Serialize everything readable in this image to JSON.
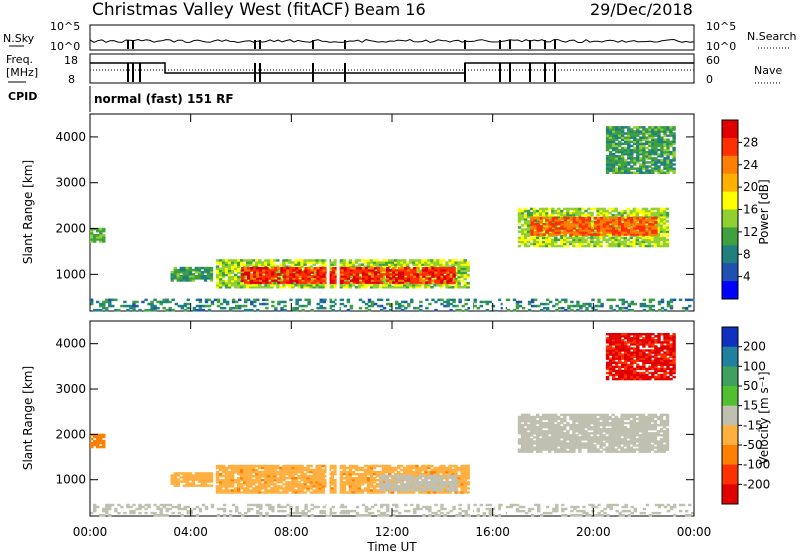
{
  "header": {
    "site": "Christmas Valley West (fitACF)",
    "beam": "Beam 16",
    "date": "29/Dec/2018"
  },
  "top_panels": {
    "nsky_label": "N.Sky",
    "nsky_ticks": [
      "10^5",
      "10^0"
    ],
    "nsearch_label": "N.Search",
    "nsearch_ticks": [
      "10^5",
      "10^0"
    ],
    "freq_label_1": "Freq.",
    "freq_label_2": "[MHz]",
    "freq_ticks": [
      "18",
      "8"
    ],
    "nave_label": "Nave",
    "nave_ticks": [
      "60",
      "0"
    ],
    "cpid_label": "CPID",
    "cpid_value": "normal (fast) 151 RF"
  },
  "colorbars": {
    "power": {
      "label": "Power [dB]",
      "ticks": [
        "28",
        "24",
        "20",
        "16",
        "12",
        "8",
        "4"
      ],
      "colors": [
        "#e00000",
        "#ff3000",
        "#ff7f00",
        "#ffb000",
        "#ffff00",
        "#90d030",
        "#40a040",
        "#208080",
        "#2050b0",
        "#0000ff"
      ]
    },
    "velocity": {
      "label": "Velocity [m s⁻¹]",
      "ticks": [
        "200",
        "100",
        "50",
        "15",
        "-15",
        "-50",
        "-100",
        "-200"
      ],
      "colors": [
        "#1030c0",
        "#2080a0",
        "#40a060",
        "#50c030",
        "#c0c0b0",
        "#ffb040",
        "#ff8000",
        "#ff3000",
        "#e00000"
      ]
    }
  },
  "x_axis": {
    "ticks": [
      "00:00",
      "04:00",
      "08:00",
      "12:00",
      "16:00",
      "20:00",
      "00:00"
    ],
    "label": "Time UT"
  },
  "chart_data": [
    {
      "type": "heatmap",
      "name": "power",
      "xlabel": "Time UT",
      "ylabel": "Slant Range [km]",
      "xlim": [
        0,
        24
      ],
      "ylim": [
        200,
        4500
      ],
      "yticks": [
        1000,
        2000,
        3000,
        4000
      ],
      "colorbar_label": "Power [dB]",
      "colorbar_range": [
        0,
        30
      ],
      "regions": [
        {
          "t0": 0.0,
          "t1": 0.6,
          "r0": 1700,
          "r1": 2000,
          "value": 12
        },
        {
          "t0": 3.2,
          "t1": 4.8,
          "r0": 850,
          "r1": 1150,
          "value": 10
        },
        {
          "t0": 5.0,
          "t1": 15.0,
          "r0": 700,
          "r1": 1300,
          "value": 14
        },
        {
          "t0": 6.0,
          "t1": 14.5,
          "r0": 800,
          "r1": 1150,
          "value": 26
        },
        {
          "t0": 17.0,
          "t1": 23.0,
          "r0": 1600,
          "r1": 2450,
          "value": 14
        },
        {
          "t0": 17.5,
          "t1": 22.5,
          "r0": 1850,
          "r1": 2250,
          "value": 24
        },
        {
          "t0": 20.5,
          "t1": 23.2,
          "r0": 3200,
          "r1": 4200,
          "value": 10
        },
        {
          "t0": 0.0,
          "t1": 24.0,
          "r0": 200,
          "r1": 450,
          "value": 8
        }
      ]
    },
    {
      "type": "heatmap",
      "name": "velocity",
      "xlabel": "Time UT",
      "ylabel": "Slant Range [km]",
      "xlim": [
        0,
        24
      ],
      "ylim": [
        200,
        4500
      ],
      "yticks": [
        1000,
        2000,
        3000,
        4000
      ],
      "colorbar_label": "Velocity [m s⁻¹]",
      "colorbar_range": [
        -250,
        250
      ],
      "regions": [
        {
          "t0": 0.0,
          "t1": 0.6,
          "r0": 1700,
          "r1": 2000,
          "value": -120
        },
        {
          "t0": 3.2,
          "t1": 4.8,
          "r0": 850,
          "r1": 1150,
          "value": -60
        },
        {
          "t0": 5.0,
          "t1": 15.0,
          "r0": 700,
          "r1": 1300,
          "value": -70
        },
        {
          "t0": 11.5,
          "t1": 14.5,
          "r0": 750,
          "r1": 1100,
          "value": 0
        },
        {
          "t0": 17.0,
          "t1": 23.0,
          "r0": 1600,
          "r1": 2450,
          "value": 0
        },
        {
          "t0": 20.5,
          "t1": 23.2,
          "r0": 3200,
          "r1": 4200,
          "value": -200
        },
        {
          "t0": 0.0,
          "t1": 24.0,
          "r0": 200,
          "r1": 450,
          "value": 10
        }
      ]
    }
  ]
}
